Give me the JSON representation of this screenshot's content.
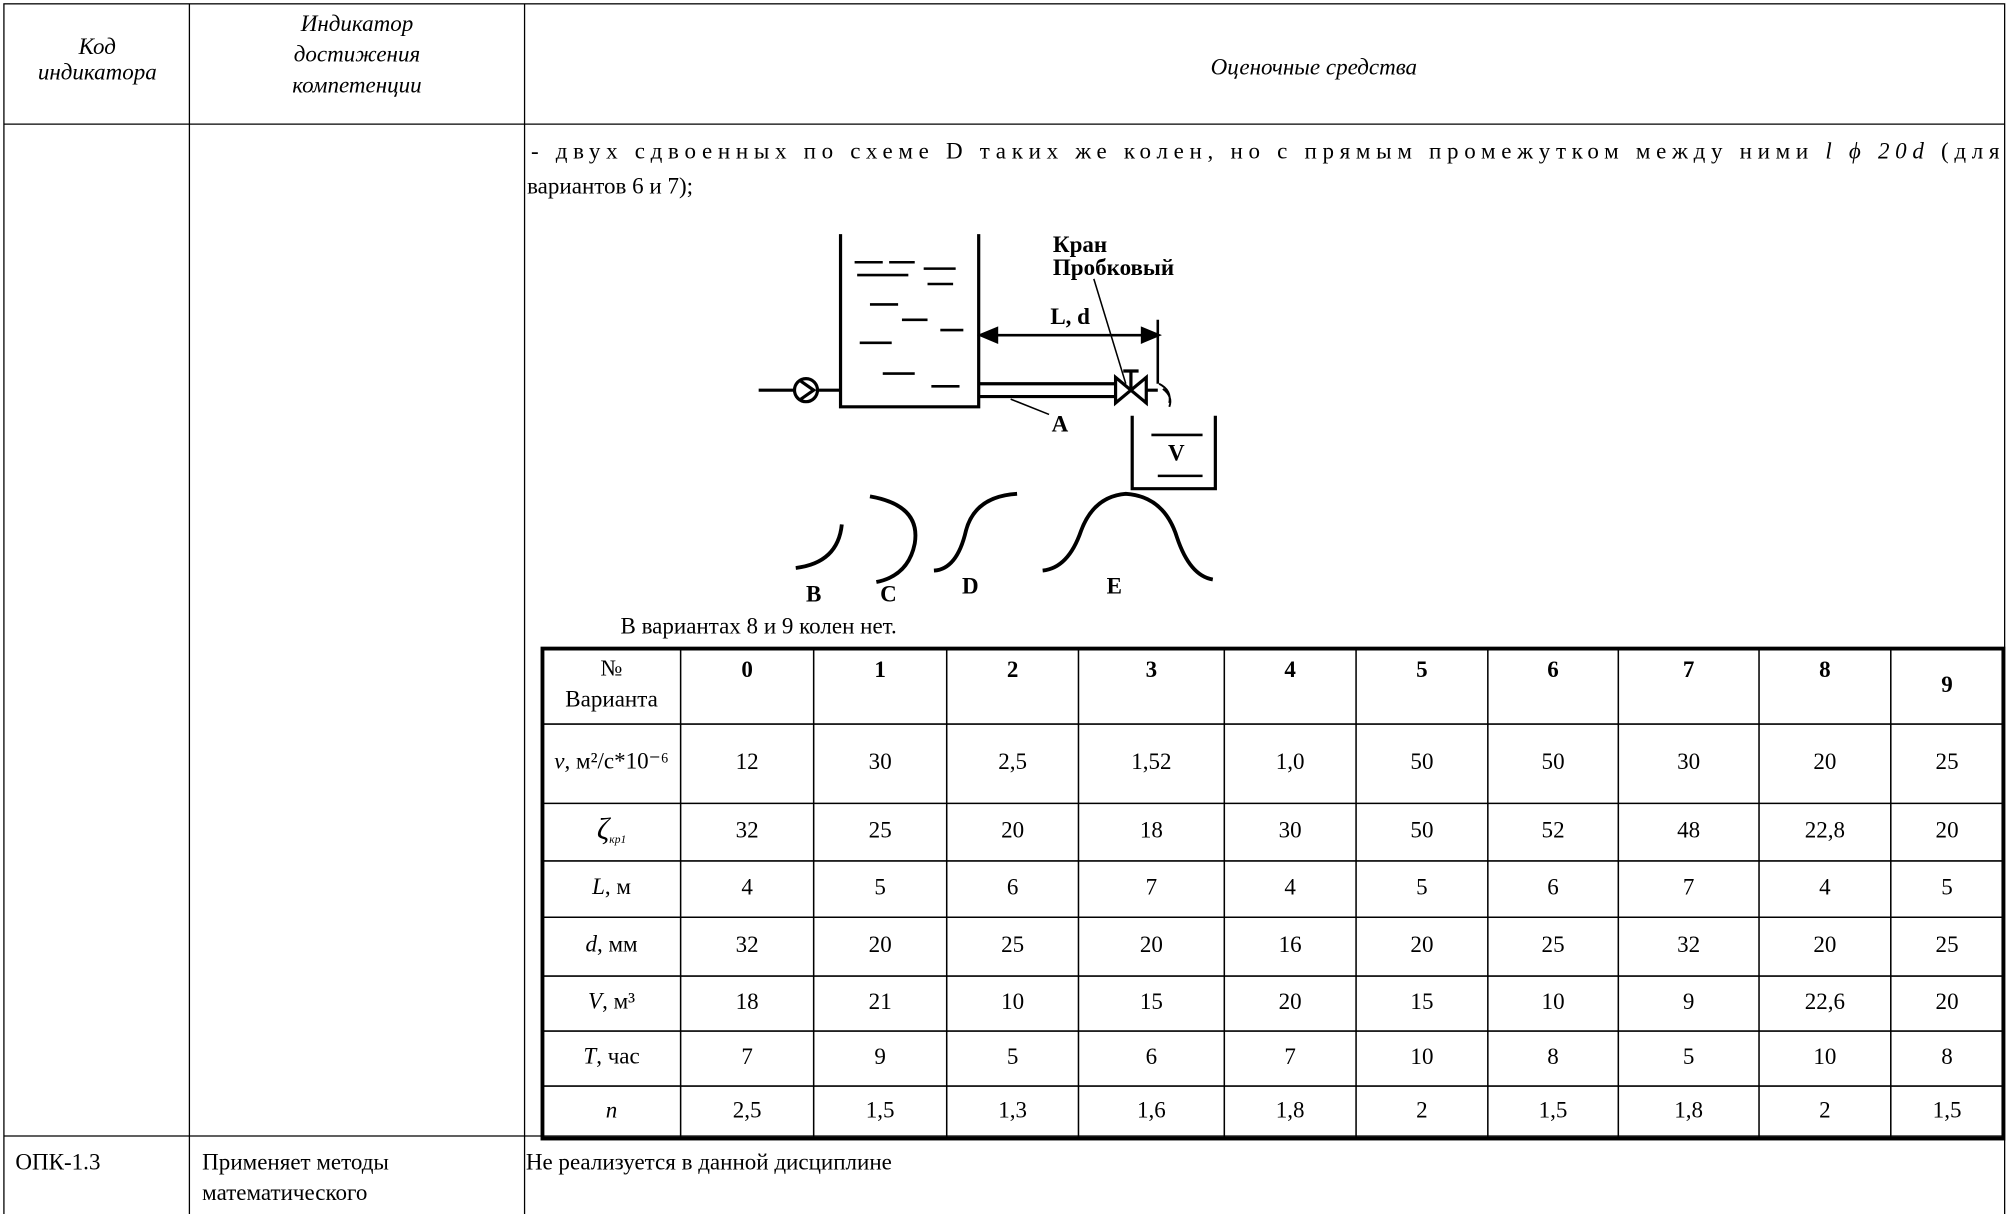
{
  "header": {
    "cells": [
      [
        "Код",
        "индикатора"
      ],
      [
        "Индикатор",
        "достижения",
        "компетенции"
      ],
      [
        "Оценочные средства"
      ]
    ]
  },
  "body": {
    "line1": [
      "- двух сдвоенных по схеме D таких же колен, но с прямым промежутком между ними ",
      "l ϕ 20d",
      " (для"
    ],
    "line2": "вариантов 6 и 7);",
    "figure": {
      "valve": [
        "Кран",
        "Пробковый"
      ],
      "dimension": "L, d",
      "pipe": "A",
      "tank": "V",
      "elbows": [
        "B",
        "C",
        "D",
        "E"
      ]
    },
    "caption": "В вариантах 8 и 9 колен нет.",
    "table": {
      "header": {
        "label": [
          "№",
          "Варианта"
        ],
        "variants": [
          "0",
          "1",
          "2",
          "3",
          "4",
          "5",
          "6",
          "7",
          "8",
          "9"
        ]
      },
      "rows": [
        {
          "symbol": "ν",
          "unit": ", м²/с*10⁻⁶",
          "values": [
            "12",
            "30",
            "2,5",
            "1,52",
            "1,0",
            "50",
            "50",
            "30",
            "20",
            "25"
          ]
        },
        {
          "symbol": "ζ",
          "sub": "кр1",
          "values": [
            "32",
            "25",
            "20",
            "18",
            "30",
            "50",
            "52",
            "48",
            "22,8",
            "20"
          ]
        },
        {
          "symbol": "L",
          "unit": ", м",
          "values": [
            "4",
            "5",
            "6",
            "7",
            "4",
            "5",
            "6",
            "7",
            "4",
            "5"
          ]
        },
        {
          "symbol": "d",
          "unit": ", мм",
          "values": [
            "32",
            "20",
            "25",
            "20",
            "16",
            "20",
            "25",
            "32",
            "20",
            "25"
          ]
        },
        {
          "symbol": "V",
          "unit": ", м³",
          "values": [
            "18",
            "21",
            "10",
            "15",
            "20",
            "15",
            "10",
            "9",
            "22,6",
            "20"
          ]
        },
        {
          "symbol": "T",
          "unit": ", час",
          "values": [
            "7",
            "9",
            "5",
            "6",
            "7",
            "10",
            "8",
            "5",
            "10",
            "8"
          ]
        },
        {
          "symbol": "n",
          "values": [
            "2,5",
            "1,5",
            "1,3",
            "1,6",
            "1,8",
            "2",
            "1,5",
            "1,8",
            "2",
            "1,5"
          ]
        }
      ]
    }
  },
  "footer_row": {
    "code": "ОПК-1.3",
    "indicator": [
      "Применяет методы",
      "математического"
    ],
    "means": "Не реализуется в данной дисциплине"
  }
}
